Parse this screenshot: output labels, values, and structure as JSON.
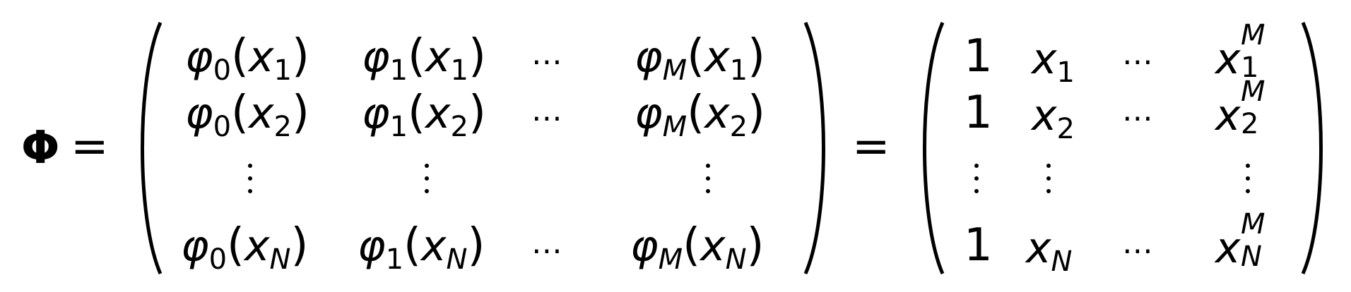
{
  "symbol": "Φ",
  "equals": "=",
  "left_matrix": {
    "phi": "φ",
    "lparen": "(",
    "rparen": ")",
    "x": "x",
    "subs": {
      "zero": "0",
      "one": "1",
      "m": "M",
      "x1": "1",
      "x2": "2",
      "xn": "N"
    },
    "hdots": "⋯"
  },
  "right_matrix": {
    "one": "1",
    "x": "x",
    "sup": "M",
    "sub1": "1",
    "sub2": "2",
    "subn": "N",
    "hdots": "⋯"
  }
}
